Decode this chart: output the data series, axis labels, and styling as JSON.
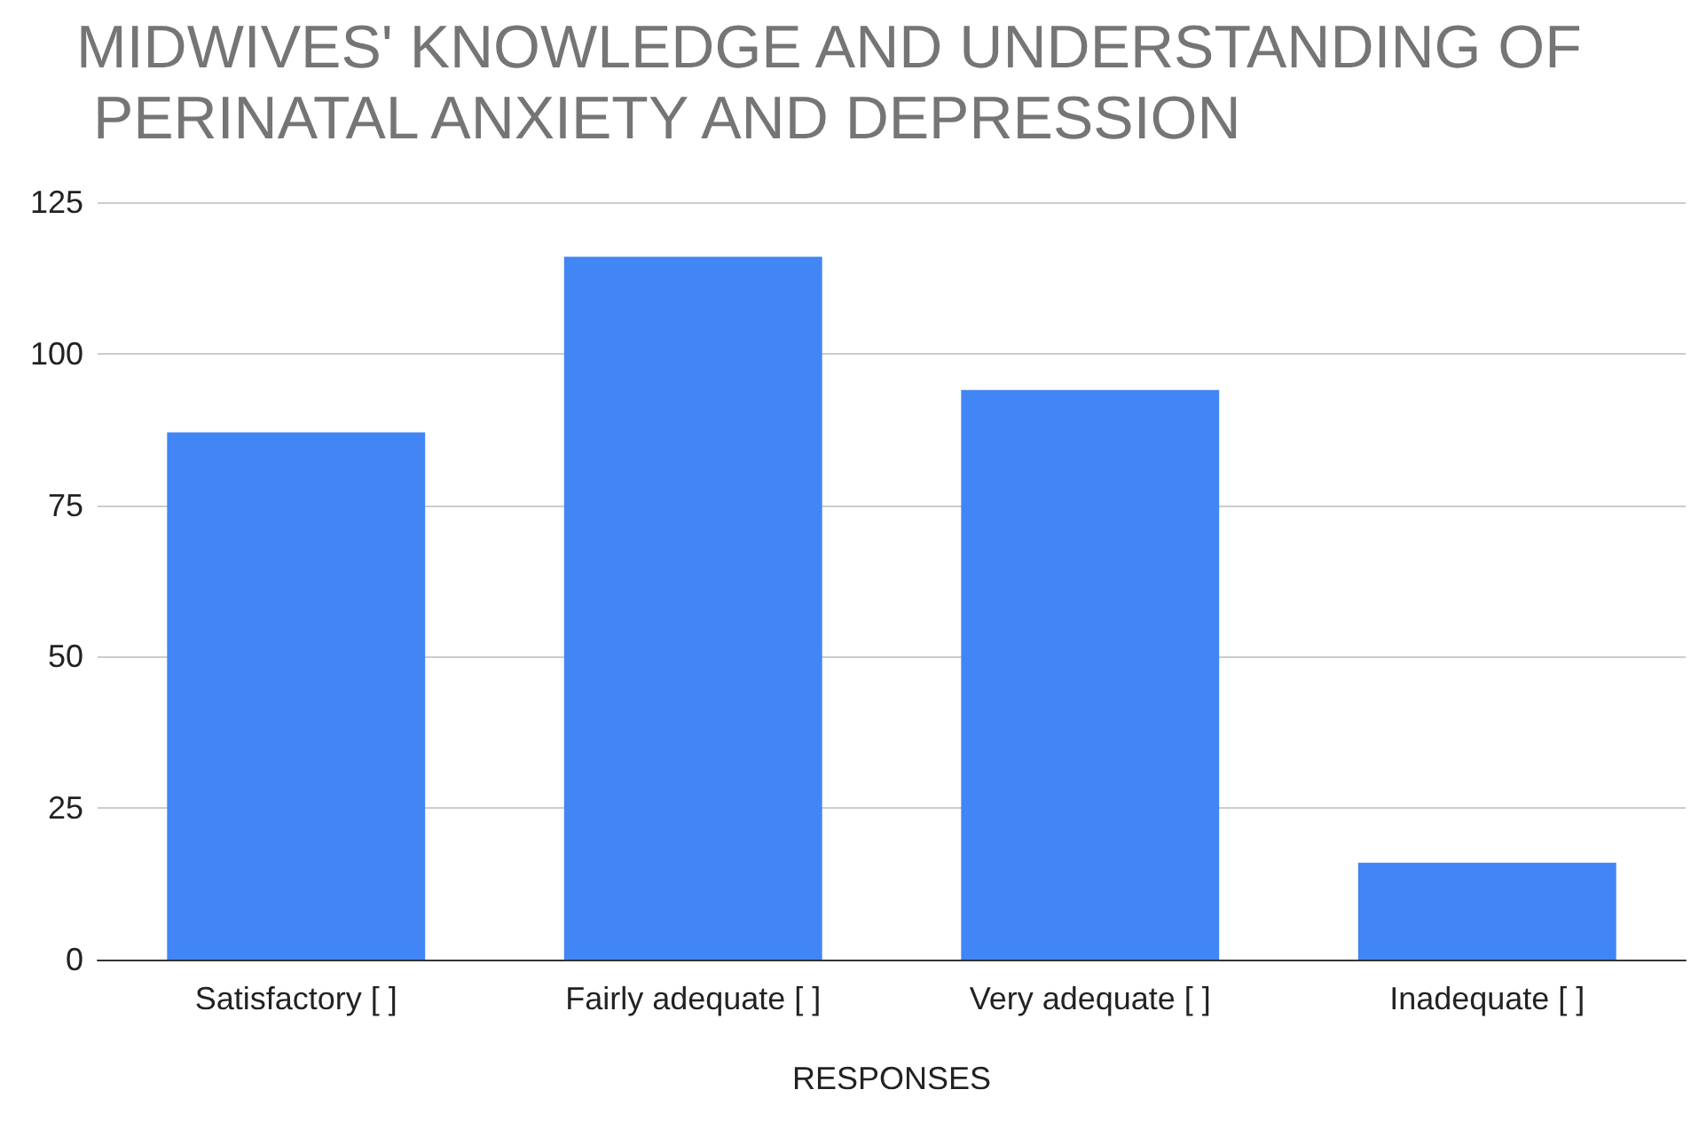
{
  "chart_data": {
    "type": "bar",
    "title": "MIDWIVES' KNOWLEDGE AND UNDERSTANDING OF PERINATAL ANXIETY AND DEPRESSION",
    "xlabel": "RESPONSES",
    "categories": [
      "Satisfactory [ ]",
      "Fairly adequate [ ]",
      "Very adequate [ ]",
      "Inadequate [ ]"
    ],
    "values": [
      87,
      116,
      94,
      16
    ],
    "color": "#4285f4",
    "ylim": [
      0,
      125
    ],
    "yticks": [
      0,
      25,
      50,
      75,
      100,
      125
    ],
    "grid": "y"
  }
}
